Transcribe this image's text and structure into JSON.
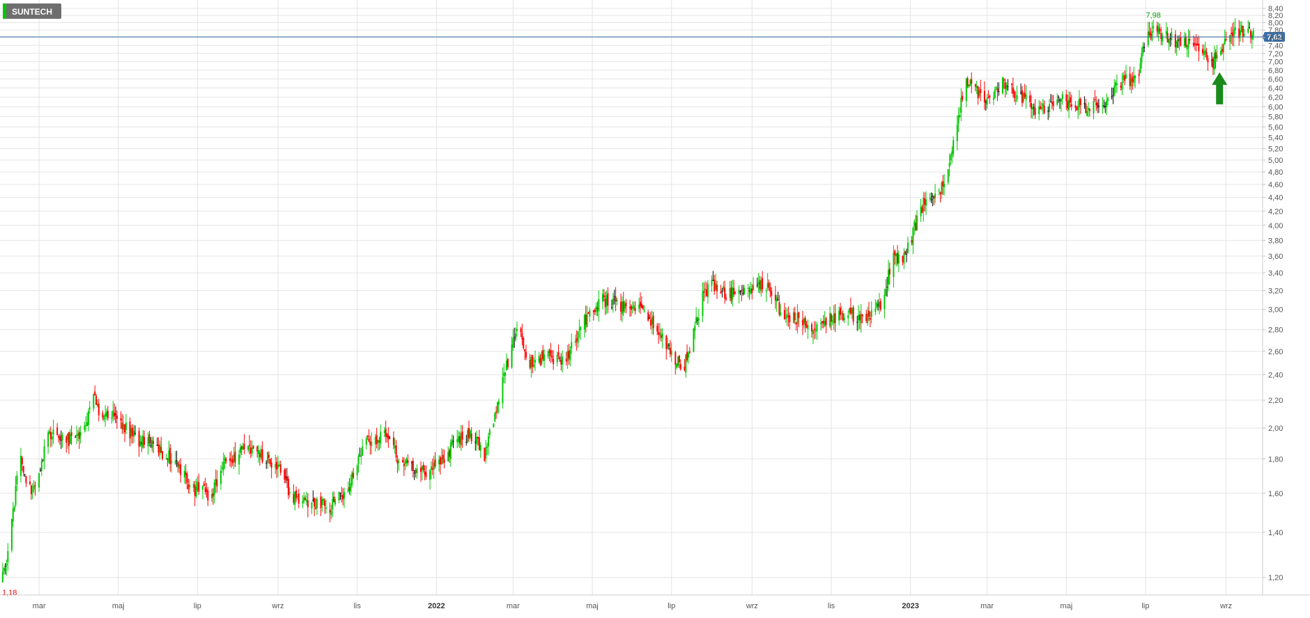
{
  "badge": {
    "label": "SUNTECH"
  },
  "chart_data": {
    "type": "candlestick",
    "title": "SUNTECH",
    "y_scale": "log",
    "ylim": [
      1.13,
      8.48
    ],
    "grid": true,
    "y_ticks": [
      1.2,
      1.4,
      1.6,
      1.8,
      2.0,
      2.2,
      2.4,
      2.6,
      2.8,
      3.0,
      3.2,
      3.4,
      3.6,
      3.8,
      4.0,
      4.2,
      4.4,
      4.6,
      4.8,
      5.0,
      5.2,
      5.4,
      5.6,
      5.8,
      6.0,
      6.2,
      6.4,
      6.6,
      6.8,
      7.0,
      7.2,
      7.4,
      7.6,
      7.8,
      8.0,
      8.2,
      8.4
    ],
    "y_tick_labels": [
      "1,20",
      "1,40",
      "1,60",
      "1,80",
      "2,00",
      "2,20",
      "2,40",
      "2,60",
      "2,80",
      "3,00",
      "3,20",
      "3,40",
      "3,60",
      "3,80",
      "4,00",
      "4,20",
      "4,40",
      "4,60",
      "4,80",
      "5,00",
      "5,20",
      "5,40",
      "5,60",
      "5,80",
      "6,00",
      "6,20",
      "6,40",
      "6,60",
      "6,80",
      "7,00",
      "7,20",
      "7,40",
      "7,60",
      "7,80",
      "8,00",
      "8,20",
      "8,40"
    ],
    "x_ticks": [
      {
        "label": "mar",
        "date": "2021-03-01",
        "bold": false
      },
      {
        "label": "maj",
        "date": "2021-05-01",
        "bold": false
      },
      {
        "label": "lip",
        "date": "2021-07-01",
        "bold": false
      },
      {
        "label": "wrz",
        "date": "2021-09-01",
        "bold": false
      },
      {
        "label": "lis",
        "date": "2021-11-01",
        "bold": false
      },
      {
        "label": "2022",
        "date": "2022-01-01",
        "bold": true
      },
      {
        "label": "mar",
        "date": "2022-03-01",
        "bold": false
      },
      {
        "label": "maj",
        "date": "2022-05-01",
        "bold": false
      },
      {
        "label": "lip",
        "date": "2022-07-01",
        "bold": false
      },
      {
        "label": "wrz",
        "date": "2022-09-01",
        "bold": false
      },
      {
        "label": "lis",
        "date": "2022-11-01",
        "bold": false
      },
      {
        "label": "2023",
        "date": "2023-01-01",
        "bold": true
      },
      {
        "label": "mar",
        "date": "2023-03-01",
        "bold": false
      },
      {
        "label": "maj",
        "date": "2023-05-01",
        "bold": false
      },
      {
        "label": "lip",
        "date": "2023-07-01",
        "bold": false
      },
      {
        "label": "wrz",
        "date": "2023-09-01",
        "bold": false
      }
    ],
    "price_path": [
      [
        "2021-01-31",
        1.18
      ],
      [
        "2021-02-07",
        1.38
      ],
      [
        "2021-02-14",
        1.85
      ],
      [
        "2021-02-21",
        1.62
      ],
      [
        "2021-02-28",
        1.65
      ],
      [
        "2021-03-07",
        1.95
      ],
      [
        "2021-03-14",
        2.0
      ],
      [
        "2021-03-21",
        1.92
      ],
      [
        "2021-04-04",
        1.95
      ],
      [
        "2021-04-11",
        2.25
      ],
      [
        "2021-04-18",
        2.08
      ],
      [
        "2021-04-25",
        2.1
      ],
      [
        "2021-05-02",
        2.02
      ],
      [
        "2021-05-09",
        1.98
      ],
      [
        "2021-05-16",
        1.92
      ],
      [
        "2021-05-30",
        1.88
      ],
      [
        "2021-06-13",
        1.78
      ],
      [
        "2021-06-27",
        1.62
      ],
      [
        "2021-07-04",
        1.64
      ],
      [
        "2021-07-11",
        1.58
      ],
      [
        "2021-07-18",
        1.72
      ],
      [
        "2021-07-25",
        1.8
      ],
      [
        "2021-08-08",
        1.85
      ],
      [
        "2021-08-22",
        1.82
      ],
      [
        "2021-09-05",
        1.7
      ],
      [
        "2021-09-12",
        1.58
      ],
      [
        "2021-09-26",
        1.55
      ],
      [
        "2021-10-10",
        1.53
      ],
      [
        "2021-10-24",
        1.6
      ],
      [
        "2021-11-07",
        1.9
      ],
      [
        "2021-11-21",
        1.95
      ],
      [
        "2021-12-05",
        1.78
      ],
      [
        "2021-12-19",
        1.72
      ],
      [
        "2022-01-02",
        1.75
      ],
      [
        "2022-01-16",
        1.92
      ],
      [
        "2022-01-30",
        1.96
      ],
      [
        "2022-02-06",
        1.8
      ],
      [
        "2022-02-20",
        2.3
      ],
      [
        "2022-02-27",
        2.62
      ],
      [
        "2022-03-06",
        2.82
      ],
      [
        "2022-03-13",
        2.5
      ],
      [
        "2022-03-27",
        2.55
      ],
      [
        "2022-04-10",
        2.52
      ],
      [
        "2022-04-24",
        2.88
      ],
      [
        "2022-05-08",
        3.1
      ],
      [
        "2022-05-22",
        3.05
      ],
      [
        "2022-06-05",
        3.02
      ],
      [
        "2022-06-19",
        2.85
      ],
      [
        "2022-07-03",
        2.52
      ],
      [
        "2022-07-10",
        2.46
      ],
      [
        "2022-07-17",
        2.7
      ],
      [
        "2022-07-24",
        3.1
      ],
      [
        "2022-07-31",
        3.25
      ],
      [
        "2022-08-14",
        3.15
      ],
      [
        "2022-08-28",
        3.2
      ],
      [
        "2022-09-11",
        3.25
      ],
      [
        "2022-09-25",
        2.95
      ],
      [
        "2022-10-09",
        2.9
      ],
      [
        "2022-10-23",
        2.8
      ],
      [
        "2022-10-30",
        2.95
      ],
      [
        "2022-11-06",
        2.92
      ],
      [
        "2022-11-20",
        2.95
      ],
      [
        "2022-11-27",
        2.9
      ],
      [
        "2022-12-04",
        3.0
      ],
      [
        "2022-12-11",
        3.05
      ],
      [
        "2022-12-18",
        3.6
      ],
      [
        "2022-12-25",
        3.58
      ],
      [
        "2023-01-01",
        3.8
      ],
      [
        "2023-01-08",
        4.2
      ],
      [
        "2023-01-15",
        4.45
      ],
      [
        "2023-01-22",
        4.38
      ],
      [
        "2023-01-29",
        4.8
      ],
      [
        "2023-02-05",
        5.4
      ],
      [
        "2023-02-12",
        6.6
      ],
      [
        "2023-02-19",
        6.5
      ],
      [
        "2023-02-26",
        6.0
      ],
      [
        "2023-03-05",
        6.3
      ],
      [
        "2023-03-12",
        6.5
      ],
      [
        "2023-03-26",
        6.2
      ],
      [
        "2023-04-09",
        5.95
      ],
      [
        "2023-04-23",
        6.15
      ],
      [
        "2023-05-07",
        6.05
      ],
      [
        "2023-05-21",
        6.0
      ],
      [
        "2023-06-04",
        6.15
      ],
      [
        "2023-06-11",
        6.55
      ],
      [
        "2023-06-25",
        6.65
      ],
      [
        "2023-07-02",
        7.7
      ],
      [
        "2023-07-09",
        7.8
      ],
      [
        "2023-07-16",
        7.65
      ],
      [
        "2023-07-30",
        7.45
      ],
      [
        "2023-08-13",
        7.35
      ],
      [
        "2023-08-20",
        6.95
      ],
      [
        "2023-08-27",
        7.15
      ],
      [
        "2023-09-03",
        7.8
      ],
      [
        "2023-09-17",
        7.75
      ],
      [
        "2023-09-24",
        7.62
      ]
    ],
    "current_price": 7.62,
    "current_price_label": "7,62",
    "annotations": [
      {
        "label": "7,98",
        "date": "2023-07-07",
        "value": 7.98,
        "color": "#00a000"
      },
      {
        "label": "1,18",
        "date": "2021-01-31",
        "value": 1.18,
        "color": "#ff0000"
      }
    ],
    "arrow": {
      "date": "2023-08-27",
      "from_value": 6.05,
      "to_value": 6.75,
      "color": "#1a8a1a",
      "direction": "up"
    },
    "colors": {
      "up": "#00c800",
      "down": "#ff0000",
      "doji": "#000000",
      "grid": "#e4e4e4",
      "price_line": "#3b6ea5",
      "price_badge": "#3b6ea5",
      "axis_text": "#555555",
      "badge_bg": "#6e6e6e",
      "badge_accent": "#00c800"
    }
  }
}
